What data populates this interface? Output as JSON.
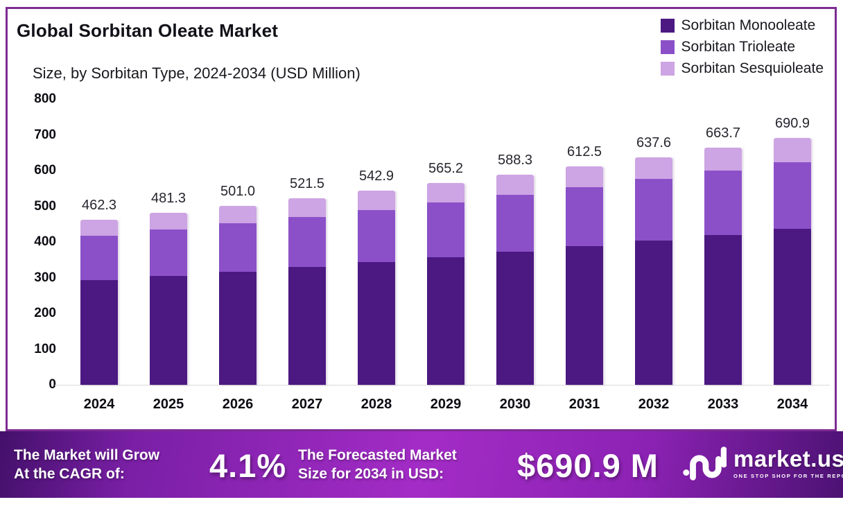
{
  "header": {
    "title": "Global Sorbitan Oleate Market",
    "subtitle": "Size, by Sorbitan Type, 2024-2034 (USD Million)"
  },
  "legend": [
    {
      "label": "Sorbitan Monooleate",
      "color": "#4b1981"
    },
    {
      "label": "Sorbitan Trioleate",
      "color": "#8b50c8"
    },
    {
      "label": "Sorbitan Sesquioleate",
      "color": "#cda4e4"
    }
  ],
  "chart_data": {
    "type": "bar",
    "stacked": true,
    "title": "Global Sorbitan Oleate Market Size, by Sorbitan Type, 2024-2034 (USD Million)",
    "categories": [
      "2024",
      "2025",
      "2026",
      "2027",
      "2028",
      "2029",
      "2030",
      "2031",
      "2032",
      "2033",
      "2034"
    ],
    "series": [
      {
        "name": "Sorbitan Monooleate",
        "values": [
          292.6,
          304.7,
          317.1,
          330.1,
          343.7,
          357.8,
          372.4,
          387.7,
          403.6,
          420.1,
          437.3
        ]
      },
      {
        "name": "Sorbitan Trioleate",
        "values": [
          124.8,
          130.0,
          135.3,
          140.8,
          146.6,
          152.6,
          158.8,
          165.4,
          172.2,
          179.2,
          186.5
        ]
      },
      {
        "name": "Sorbitan Sesquioleate",
        "values": [
          44.9,
          46.6,
          48.6,
          50.6,
          52.6,
          54.8,
          57.1,
          59.4,
          61.8,
          64.4,
          67.1
        ]
      }
    ],
    "totals": [
      462.3,
      481.3,
      501.0,
      521.5,
      542.9,
      565.2,
      588.3,
      612.5,
      637.6,
      663.7,
      690.9
    ],
    "xlabel": "",
    "ylabel": "",
    "ylim": [
      0,
      800
    ],
    "yticks": [
      800,
      700,
      600,
      500,
      400,
      300,
      200,
      100,
      0
    ],
    "grid": false,
    "legend_position": "top-right"
  },
  "banner": {
    "cagr_label_lines": [
      "The Market will Grow",
      "At the CAGR of:"
    ],
    "cagr_value": "4.1%",
    "forecast_label_lines": [
      "The Forecasted Market",
      "Size for 2034 in USD:"
    ],
    "forecast_value": "$690.9 M",
    "brand": "market.us",
    "brand_tagline": "ONE STOP SHOP FOR THE REPORTS"
  },
  "colors": {
    "card_border": "#7d2b92",
    "banner_gradient_start": "#43106a",
    "banner_gradient_mid": "#a32cc6",
    "banner_gradient_end": "#4c1273",
    "baseline": "#d9d9d9",
    "text_dark": "#111118",
    "text_white": "#ffffff"
  }
}
